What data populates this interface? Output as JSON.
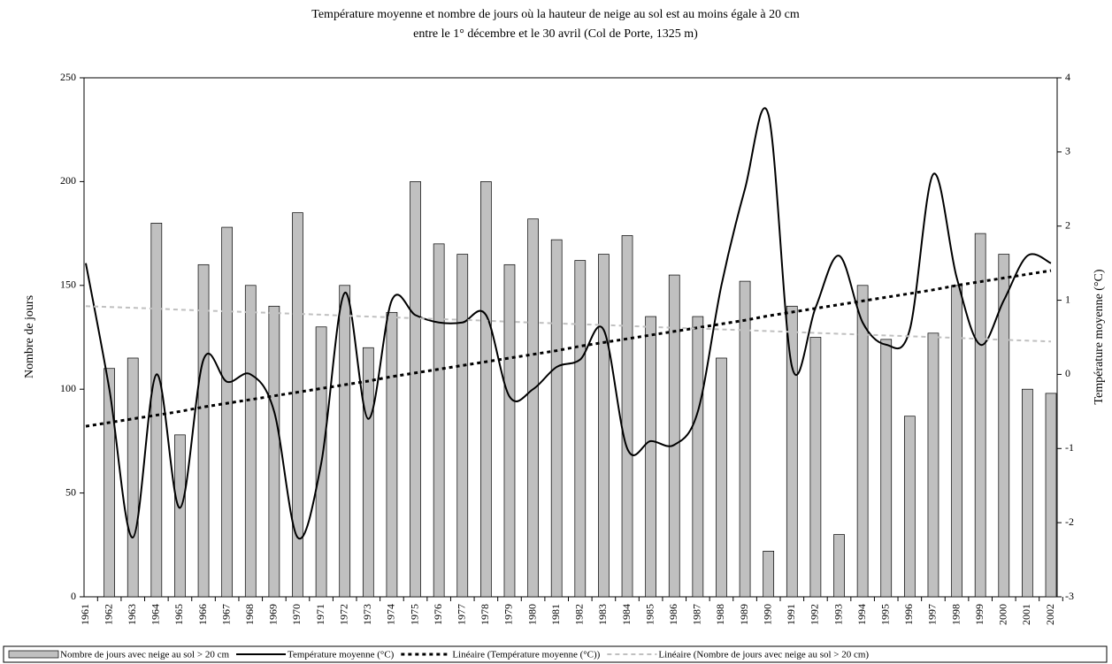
{
  "chart_data": {
    "type": "bar",
    "title": "Température moyenne et nombre de jours où la hauteur de neige au sol est au moins égale à 20 cm",
    "subtitle": "entre le 1° décembre et le 30 avril (Col de Porte, 1325 m)",
    "ylabel": "Nombre de jours",
    "y2label": "Température moyenne (°C)",
    "categories": [
      "1961",
      "1962",
      "1963",
      "1964",
      "1965",
      "1966",
      "1967",
      "1968",
      "1969",
      "1970",
      "1971",
      "1972",
      "1973",
      "1974",
      "1975",
      "1976",
      "1977",
      "1978",
      "1979",
      "1980",
      "1981",
      "1982",
      "1983",
      "1984",
      "1985",
      "1986",
      "1987",
      "1988",
      "1989",
      "1990",
      "1991",
      "1992",
      "1993",
      "1994",
      "1995",
      "1996",
      "1997",
      "1998",
      "1999",
      "2000",
      "2001",
      "2002"
    ],
    "ylim": [
      0,
      250
    ],
    "yticks": [
      0,
      50,
      100,
      150,
      200,
      250
    ],
    "y2lim": [
      -3,
      4
    ],
    "y2ticks": [
      -3,
      -2,
      -1,
      0,
      1,
      2,
      3,
      4
    ],
    "series": [
      {
        "name": "Nombre de jours avec neige au sol > 20 cm",
        "type": "bar",
        "color": "#c0c0c0",
        "values": [
          null,
          110,
          115,
          180,
          78,
          160,
          178,
          150,
          140,
          185,
          130,
          150,
          120,
          137,
          200,
          170,
          165,
          200,
          160,
          182,
          172,
          162,
          165,
          174,
          135,
          155,
          135,
          115,
          152,
          22,
          140,
          125,
          30,
          150,
          124,
          87,
          127,
          150,
          175,
          165,
          100,
          98
        ]
      },
      {
        "name": "Température moyenne (°C)",
        "type": "line",
        "axis": "y2",
        "color": "#000000",
        "dash": "solid",
        "values": [
          1.5,
          -0.2,
          -2.2,
          0.0,
          -1.8,
          0.2,
          -0.1,
          0.0,
          -0.5,
          -2.2,
          -1.2,
          1.1,
          -0.6,
          1.0,
          0.8,
          0.7,
          0.7,
          0.8,
          -0.3,
          -0.2,
          0.1,
          0.2,
          0.6,
          -1.0,
          -0.9,
          -0.95,
          -0.5,
          1.2,
          2.5,
          3.5,
          0.1,
          0.9,
          1.6,
          0.7,
          0.4,
          0.6,
          2.7,
          1.3,
          0.4,
          1.0,
          1.6,
          1.5
        ]
      },
      {
        "name": "Linéaire (Température moyenne (°C))",
        "type": "line",
        "axis": "y2",
        "color": "#000000",
        "dash": "dotted",
        "values": [
          -0.7,
          -0.65,
          -0.6,
          -0.55,
          -0.5,
          -0.44,
          -0.39,
          -0.34,
          -0.29,
          -0.24,
          -0.19,
          -0.14,
          -0.09,
          -0.03,
          0.02,
          0.07,
          0.12,
          0.17,
          0.22,
          0.27,
          0.32,
          0.38,
          0.43,
          0.48,
          0.53,
          0.58,
          0.63,
          0.68,
          0.73,
          0.79,
          0.84,
          0.89,
          0.94,
          0.99,
          1.04,
          1.09,
          1.14,
          1.2,
          1.25,
          1.3,
          1.35,
          1.4
        ]
      },
      {
        "name": "Linéaire (Nombre de jours avec neige au sol > 20 cm)",
        "type": "line",
        "color": "#c0c0c0",
        "dash": "dashed",
        "values": [
          140,
          139.6,
          139.2,
          138.8,
          138.3,
          137.9,
          137.5,
          137.1,
          136.7,
          136.3,
          135.9,
          135.4,
          135,
          134.6,
          134.2,
          133.8,
          133.4,
          133,
          132.5,
          132.1,
          131.7,
          131.3,
          130.9,
          130.5,
          130,
          129.6,
          129.2,
          128.8,
          128.4,
          128,
          127.6,
          127.1,
          126.7,
          126.3,
          125.9,
          125.5,
          125.1,
          124.7,
          124.2,
          123.8,
          123.4,
          123
        ]
      }
    ],
    "legend": "bottom"
  }
}
